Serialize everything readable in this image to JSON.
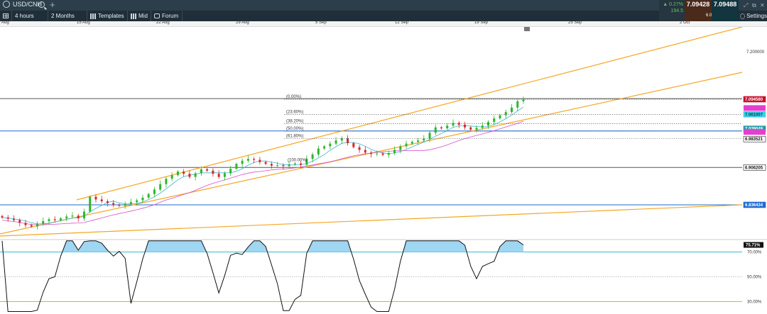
{
  "window": {
    "symbol": "USD/CNH"
  },
  "toolbar": {
    "interval": "4 hours",
    "range": "2 Months",
    "templates": "Templates",
    "mid": "Mid",
    "forum": "Forum",
    "settings": "Settings"
  },
  "quote": {
    "change_pct": "▲ 0.27%",
    "change_pts": "194.5",
    "bid": "7.09428",
    "ask": "7.09488",
    "spread": "6.0"
  },
  "date_axis": [
    "Aug",
    "15 Aug",
    "22 Aug",
    "29 Aug",
    "5 Sep",
    "12 Sep",
    "19 Sep",
    "25 Sep",
    "2 Oct"
  ],
  "colors": {
    "channel": "#f5a623",
    "ma_fast": "#3fb7d1",
    "ma_slow": "#d84fc8",
    "last_price": "#c8102e",
    "hline_blue": "#1e6ad1",
    "rsi_fill": "#9fd6f2",
    "candle_up": "#2db52d",
    "candle_down": "#d42a2a"
  },
  "chart_data": [
    {
      "type": "candlestick",
      "instrument": "USD/CNH",
      "y_ticks": [
        "7.200000"
      ],
      "fibonacci": [
        {
          "label": "(0.00%)",
          "price": 7.0945
        },
        {
          "label": "(23.60%)",
          "price": 7.061
        },
        {
          "label": "(38.20%)",
          "price": 7.04
        },
        {
          "label": "(50.00%)",
          "price": 7.0235
        },
        {
          "label": "(61.80%)",
          "price": 7.0068
        },
        {
          "label": "(100.00%)",
          "price": 6.9535
        }
      ],
      "price_tags": [
        {
          "label": "7.094580",
          "price": 7.0945,
          "color": "#c8102e"
        },
        {
          "label": "7.061007",
          "price": 7.061,
          "color": "#3fd0ea"
        },
        {
          "label": "7.029049",
          "price": 7.029,
          "color": "#2a9aa8"
        },
        {
          "label": "6.983521",
          "price": 7.006,
          "color": "#222222"
        },
        {
          "label": "6.906205",
          "price": 6.943,
          "color": "#222222"
        },
        {
          "label": "6.836434",
          "price": 6.86,
          "color": "#1e6ad1"
        }
      ],
      "horizontal_lines": [
        {
          "price": 7.096,
          "color": "#555555"
        },
        {
          "price": 7.024,
          "color": "#1e6ad1"
        },
        {
          "price": 6.943,
          "color": "#555555"
        },
        {
          "price": 6.86,
          "color": "#1e6ad1"
        }
      ],
      "series": [
        {
          "name": "close",
          "values": [
            6.832,
            6.829,
            6.826,
            6.82,
            6.815,
            6.812,
            6.818,
            6.824,
            6.828,
            6.826,
            6.83,
            6.834,
            6.836,
            6.83,
            6.845,
            6.878,
            6.872,
            6.868,
            6.864,
            6.86,
            6.858,
            6.862,
            6.866,
            6.87,
            6.876,
            6.884,
            6.894,
            6.906,
            6.918,
            6.926,
            6.934,
            6.929,
            6.922,
            6.93,
            6.939,
            6.936,
            6.929,
            6.922,
            6.93,
            6.94,
            6.951,
            6.958,
            6.962,
            6.96,
            6.955,
            6.951,
            6.947,
            6.948,
            6.946,
            6.95,
            6.952,
            6.949,
            6.962,
            6.972,
            6.985,
            6.99,
            6.996,
            7.003,
            7.008,
            6.997,
            6.988,
            6.982,
            6.976,
            6.973,
            6.974,
            6.971,
            6.975,
            6.982,
            6.99,
            6.996,
            7.0,
            7.003,
            7.007,
            7.02,
            7.032,
            7.03,
            7.036,
            7.042,
            7.038,
            7.032,
            7.027,
            7.031,
            7.036,
            7.044,
            7.052,
            7.059,
            7.066,
            7.076,
            7.09,
            7.094
          ]
        }
      ],
      "ylim": [
        6.8,
        7.25
      ]
    },
    {
      "type": "line",
      "name": "RSI",
      "y_ticks": [
        "75.71%",
        "70.00%",
        "50.00%",
        "30.00%"
      ],
      "levels": [
        70,
        50,
        30
      ],
      "current": 75.71,
      "ylim": [
        20,
        80
      ]
    }
  ]
}
